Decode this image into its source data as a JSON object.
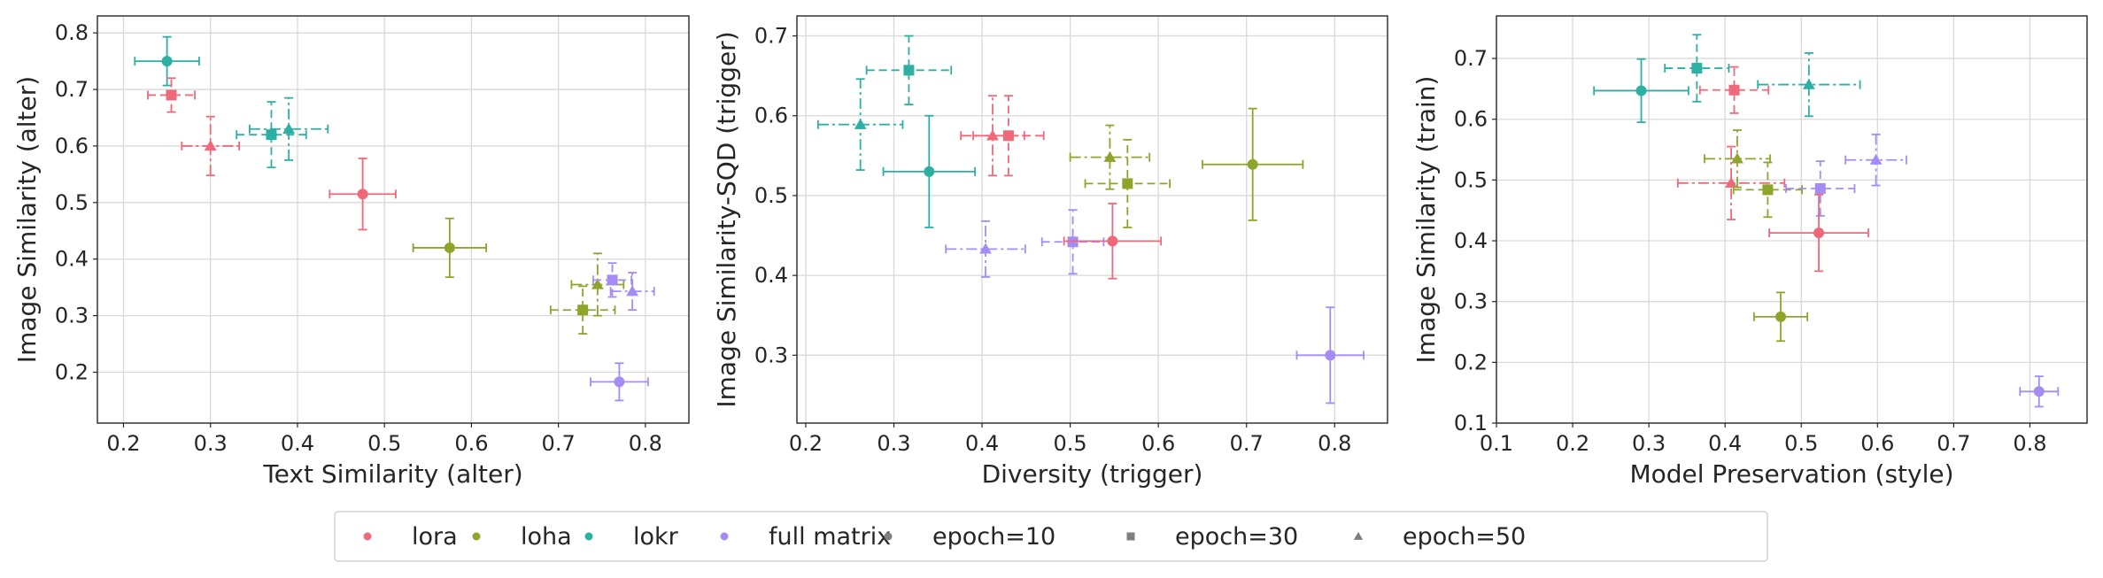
{
  "colors": {
    "lora": "#f0697a",
    "loha": "#8ea52b",
    "lokr": "#2db0a3",
    "full matrix": "#a48cf4",
    "legend_neutral": "#7f7f7f",
    "grid": "#d9d9d9",
    "axis": "#262626"
  },
  "chart_data": [
    {
      "type": "scatter",
      "title": "",
      "xlabel": "Text Similarity (alter)",
      "ylabel": "Image Similarity (alter)",
      "xlim": [
        0.17,
        0.85
      ],
      "ylim": [
        0.11,
        0.83
      ],
      "xticks": [
        0.2,
        0.3,
        0.4,
        0.5,
        0.6,
        0.7,
        0.8
      ],
      "yticks": [
        0.2,
        0.3,
        0.4,
        0.5,
        0.6,
        0.7,
        0.8
      ],
      "grid": true,
      "points": [
        {
          "method": "lokr",
          "epoch": 10,
          "x": 0.25,
          "y": 0.75,
          "xerr": 0.037,
          "yerr": 0.043
        },
        {
          "method": "lora",
          "epoch": 30,
          "x": 0.255,
          "y": 0.69,
          "xerr": 0.027,
          "yerr": 0.03
        },
        {
          "method": "lora",
          "epoch": 50,
          "x": 0.3,
          "y": 0.6,
          "xerr": 0.033,
          "yerr": 0.052
        },
        {
          "method": "lokr",
          "epoch": 30,
          "x": 0.37,
          "y": 0.62,
          "xerr": 0.04,
          "yerr": 0.058
        },
        {
          "method": "lokr",
          "epoch": 50,
          "x": 0.39,
          "y": 0.63,
          "xerr": 0.045,
          "yerr": 0.055
        },
        {
          "method": "lora",
          "epoch": 10,
          "x": 0.475,
          "y": 0.515,
          "xerr": 0.038,
          "yerr": 0.063
        },
        {
          "method": "loha",
          "epoch": 10,
          "x": 0.575,
          "y": 0.42,
          "xerr": 0.042,
          "yerr": 0.052
        },
        {
          "method": "loha",
          "epoch": 50,
          "x": 0.745,
          "y": 0.355,
          "xerr": 0.03,
          "yerr": 0.055
        },
        {
          "method": "loha",
          "epoch": 30,
          "x": 0.728,
          "y": 0.31,
          "xerr": 0.037,
          "yerr": 0.042
        },
        {
          "method": "full matrix",
          "epoch": 30,
          "x": 0.762,
          "y": 0.363,
          "xerr": 0.022,
          "yerr": 0.03
        },
        {
          "method": "full matrix",
          "epoch": 50,
          "x": 0.785,
          "y": 0.343,
          "xerr": 0.025,
          "yerr": 0.033
        },
        {
          "method": "full matrix",
          "epoch": 10,
          "x": 0.77,
          "y": 0.183,
          "xerr": 0.033,
          "yerr": 0.033
        }
      ]
    },
    {
      "type": "scatter",
      "title": "",
      "xlabel": "Diversity (trigger)",
      "ylabel": "Image Similarity-SQD (trigger)",
      "xlim": [
        0.19,
        0.86
      ],
      "ylim": [
        0.215,
        0.725
      ],
      "xticks": [
        0.2,
        0.3,
        0.4,
        0.5,
        0.6,
        0.7,
        0.8
      ],
      "yticks": [
        0.3,
        0.4,
        0.5,
        0.6,
        0.7
      ],
      "grid": true,
      "points": [
        {
          "method": "lokr",
          "epoch": 30,
          "x": 0.317,
          "y": 0.657,
          "xerr": 0.048,
          "yerr": 0.043
        },
        {
          "method": "lokr",
          "epoch": 50,
          "x": 0.262,
          "y": 0.589,
          "xerr": 0.048,
          "yerr": 0.057
        },
        {
          "method": "lokr",
          "epoch": 10,
          "x": 0.34,
          "y": 0.53,
          "xerr": 0.052,
          "yerr": 0.07
        },
        {
          "method": "lora",
          "epoch": 50,
          "x": 0.412,
          "y": 0.575,
          "xerr": 0.036,
          "yerr": 0.05
        },
        {
          "method": "lora",
          "epoch": 30,
          "x": 0.43,
          "y": 0.575,
          "xerr": 0.04,
          "yerr": 0.05
        },
        {
          "method": "loha",
          "epoch": 50,
          "x": 0.545,
          "y": 0.548,
          "xerr": 0.045,
          "yerr": 0.04
        },
        {
          "method": "loha",
          "epoch": 30,
          "x": 0.565,
          "y": 0.515,
          "xerr": 0.048,
          "yerr": 0.055
        },
        {
          "method": "loha",
          "epoch": 10,
          "x": 0.707,
          "y": 0.539,
          "xerr": 0.057,
          "yerr": 0.07
        },
        {
          "method": "full matrix",
          "epoch": 50,
          "x": 0.404,
          "y": 0.433,
          "xerr": 0.045,
          "yerr": 0.035
        },
        {
          "method": "full matrix",
          "epoch": 30,
          "x": 0.503,
          "y": 0.442,
          "xerr": 0.035,
          "yerr": 0.04
        },
        {
          "method": "lora",
          "epoch": 10,
          "x": 0.548,
          "y": 0.443,
          "xerr": 0.055,
          "yerr": 0.047
        },
        {
          "method": "full matrix",
          "epoch": 10,
          "x": 0.795,
          "y": 0.3,
          "xerr": 0.038,
          "yerr": 0.06
        }
      ]
    },
    {
      "type": "scatter",
      "title": "",
      "xlabel": "Model Preservation (style)",
      "ylabel": "Image Similarity (train)",
      "xlim": [
        0.1,
        0.875
      ],
      "ylim": [
        0.1,
        0.77
      ],
      "xticks": [
        0.1,
        0.2,
        0.3,
        0.4,
        0.5,
        0.6,
        0.7,
        0.8
      ],
      "yticks": [
        0.1,
        0.2,
        0.3,
        0.4,
        0.5,
        0.6,
        0.7
      ],
      "grid": true,
      "points": [
        {
          "method": "lokr",
          "epoch": 30,
          "x": 0.363,
          "y": 0.684,
          "xerr": 0.042,
          "yerr": 0.055
        },
        {
          "method": "lokr",
          "epoch": 50,
          "x": 0.51,
          "y": 0.657,
          "xerr": 0.067,
          "yerr": 0.052
        },
        {
          "method": "lokr",
          "epoch": 10,
          "x": 0.29,
          "y": 0.647,
          "xerr": 0.062,
          "yerr": 0.052
        },
        {
          "method": "lora",
          "epoch": 30,
          "x": 0.412,
          "y": 0.648,
          "xerr": 0.045,
          "yerr": 0.038
        },
        {
          "method": "loha",
          "epoch": 50,
          "x": 0.416,
          "y": 0.535,
          "xerr": 0.043,
          "yerr": 0.047
        },
        {
          "method": "lora",
          "epoch": 50,
          "x": 0.408,
          "y": 0.495,
          "xerr": 0.07,
          "yerr": 0.06
        },
        {
          "method": "loha",
          "epoch": 30,
          "x": 0.456,
          "y": 0.484,
          "xerr": 0.045,
          "yerr": 0.045
        },
        {
          "method": "full matrix",
          "epoch": 30,
          "x": 0.525,
          "y": 0.486,
          "xerr": 0.045,
          "yerr": 0.045
        },
        {
          "method": "full matrix",
          "epoch": 50,
          "x": 0.598,
          "y": 0.533,
          "xerr": 0.04,
          "yerr": 0.042
        },
        {
          "method": "lora",
          "epoch": 10,
          "x": 0.523,
          "y": 0.413,
          "xerr": 0.065,
          "yerr": 0.063
        },
        {
          "method": "loha",
          "epoch": 10,
          "x": 0.473,
          "y": 0.275,
          "xerr": 0.035,
          "yerr": 0.04
        },
        {
          "method": "full matrix",
          "epoch": 10,
          "x": 0.812,
          "y": 0.152,
          "xerr": 0.025,
          "yerr": 0.025
        }
      ]
    }
  ],
  "legend": {
    "position": "bottom-center",
    "entries": [
      {
        "label": "lora",
        "color_key": "lora",
        "marker": "circle"
      },
      {
        "label": "loha",
        "color_key": "loha",
        "marker": "circle"
      },
      {
        "label": "lokr",
        "color_key": "lokr",
        "marker": "circle"
      },
      {
        "label": "full matrix",
        "color_key": "full matrix",
        "marker": "circle"
      },
      {
        "label": "epoch=10",
        "color_key": "legend_neutral",
        "marker": "circle"
      },
      {
        "label": "epoch=30",
        "color_key": "legend_neutral",
        "marker": "square"
      },
      {
        "label": "epoch=50",
        "color_key": "legend_neutral",
        "marker": "triangle"
      }
    ]
  }
}
